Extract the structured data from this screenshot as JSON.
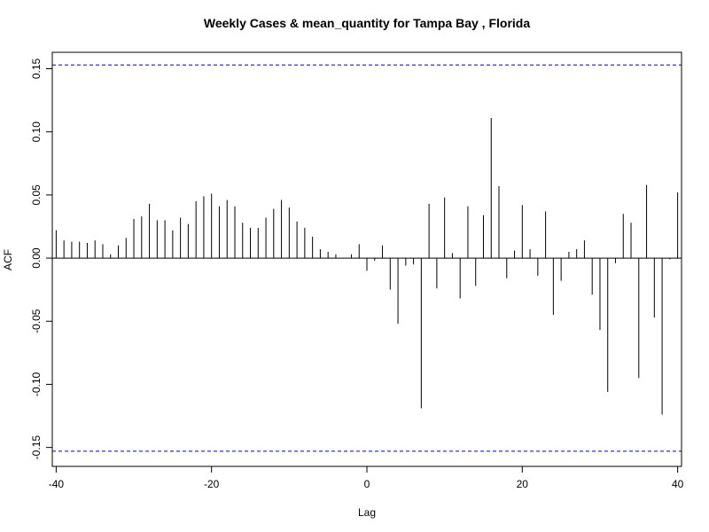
{
  "chart_data": {
    "type": "bar",
    "title": "Weekly Cases & mean_quantity for Tampa Bay , Florida",
    "xlabel": "Lag",
    "ylabel": "ACF",
    "xlim": [
      -40.5,
      40.5
    ],
    "ylim": [
      -0.165,
      0.163
    ],
    "x_ticks": [
      -40,
      -20,
      0,
      20,
      40
    ],
    "x_tick_labels": [
      "-40",
      "-20",
      "0",
      "20",
      "40"
    ],
    "y_ticks": [
      -0.15,
      -0.1,
      -0.05,
      0.0,
      0.05,
      0.1,
      0.15
    ],
    "y_tick_labels": [
      "-0.15",
      "-0.10",
      "-0.05",
      "0.00",
      "0.05",
      "0.10",
      "0.15"
    ],
    "ci_upper": 0.153,
    "ci_lower": -0.153,
    "ci_color": "#0000CC",
    "bar_color": "#000000",
    "grid": false,
    "series": [
      {
        "lags": [
          -40,
          -39,
          -38,
          -37,
          -36,
          -35,
          -34,
          -33,
          -32,
          -31,
          -30,
          -29,
          -28,
          -27,
          -26,
          -25,
          -24,
          -23,
          -22,
          -21,
          -20,
          -19,
          -18,
          -17,
          -16,
          -15,
          -14,
          -13,
          -12,
          -11,
          -10,
          -9,
          -8,
          -7,
          -6,
          -5,
          -4,
          -3,
          -2,
          -1,
          0,
          1,
          2,
          3,
          4,
          5,
          6,
          7,
          8,
          9,
          10,
          11,
          12,
          13,
          14,
          15,
          16,
          17,
          18,
          19,
          20,
          21,
          22,
          23,
          24,
          25,
          26,
          27,
          28,
          29,
          30,
          31,
          32,
          33,
          34,
          35,
          36,
          37,
          38,
          39,
          40
        ],
        "values": [
          0.022,
          0.014,
          0.013,
          0.013,
          0.012,
          0.014,
          0.011,
          0.003,
          0.01,
          0.016,
          0.031,
          0.033,
          0.043,
          0.03,
          0.03,
          0.022,
          0.032,
          0.027,
          0.045,
          0.049,
          0.051,
          0.041,
          0.046,
          0.041,
          0.028,
          0.024,
          0.024,
          0.032,
          0.039,
          0.046,
          0.04,
          0.029,
          0.024,
          0.017,
          0.007,
          0.005,
          0.003,
          0.0,
          0.003,
          0.011,
          -0.01,
          -0.002,
          0.01,
          -0.025,
          -0.052,
          -0.006,
          -0.005,
          -0.119,
          0.043,
          -0.024,
          0.048,
          0.004,
          -0.032,
          0.041,
          -0.022,
          0.034,
          0.111,
          0.057,
          -0.016,
          0.006,
          0.042,
          0.007,
          -0.014,
          0.037,
          -0.045,
          -0.018,
          0.005,
          0.007,
          0.014,
          -0.029,
          -0.057,
          -0.106,
          -0.004,
          0.035,
          0.028,
          -0.095,
          0.058,
          -0.047,
          -0.124,
          -0.001,
          0.052
        ]
      }
    ]
  }
}
